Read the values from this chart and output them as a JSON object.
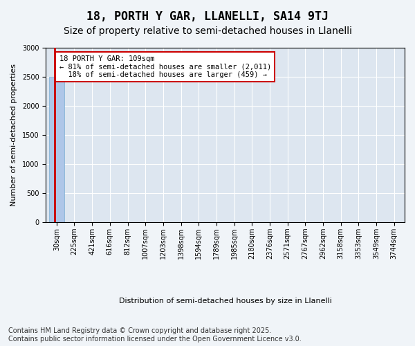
{
  "title": "18, PORTH Y GAR, LLANELLI, SA14 9TJ",
  "subtitle": "Size of property relative to semi-detached houses in Llanelli",
  "xlabel": "Distribution of semi-detached houses by size in Llanelli",
  "ylabel": "Number of semi-detached properties",
  "bin_labels": [
    "30sqm",
    "225sqm",
    "421sqm",
    "616sqm",
    "812sqm",
    "1007sqm",
    "1203sqm",
    "1398sqm",
    "1594sqm",
    "1789sqm",
    "1985sqm",
    "2180sqm",
    "2376sqm",
    "2571sqm",
    "2767sqm",
    "2962sqm",
    "3158sqm",
    "3353sqm",
    "3549sqm",
    "3744sqm"
  ],
  "bar_heights": [
    2500,
    2,
    0,
    0,
    0,
    0,
    0,
    0,
    0,
    0,
    0,
    0,
    0,
    0,
    0,
    0,
    0,
    0,
    0,
    0
  ],
  "bar_color": "#aec6e8",
  "bar_edge_color": "#7bafd4",
  "property_line_color": "#cc0000",
  "annotation_text": "18 PORTH Y GAR: 109sqm\n← 81% of semi-detached houses are smaller (2,011)\n  18% of semi-detached houses are larger (459) →",
  "annotation_box_color": "#cc0000",
  "ylim": [
    0,
    3000
  ],
  "yticks": [
    0,
    500,
    1000,
    1500,
    2000,
    2500,
    3000
  ],
  "background_color": "#dde6f0",
  "plot_bg_color": "#dde6f0",
  "footer_text": "Contains HM Land Registry data © Crown copyright and database right 2025.\nContains public sector information licensed under the Open Government Licence v3.0.",
  "title_fontsize": 12,
  "subtitle_fontsize": 10,
  "label_fontsize": 8,
  "tick_fontsize": 7,
  "footer_fontsize": 7
}
